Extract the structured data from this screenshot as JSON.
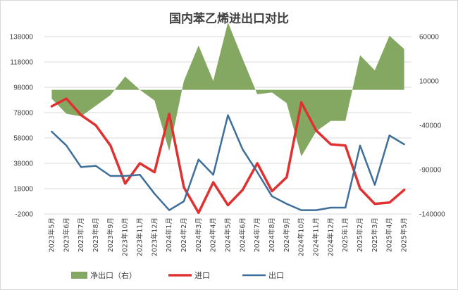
{
  "chart_data": {
    "type": "line",
    "title": "国内苯乙烯进出口对比",
    "categories": [
      "2023年5月",
      "2023年6月",
      "2023年7月",
      "2023年8月",
      "2023年9月",
      "2023年10月",
      "2023年11月",
      "2023年12月",
      "2024年1月",
      "2024年2月",
      "2024年3月",
      "2024年4月",
      "2024年5月",
      "2024年6月",
      "2024年7月",
      "2024年8月",
      "2024年9月",
      "2024年10月",
      "2024年11月",
      "2024年12月",
      "2025年1月",
      "2025年2月",
      "2025年3月",
      "2025年4月",
      "2025年5月"
    ],
    "y_left": {
      "ylim": [
        -2000,
        138000
      ],
      "ticks": [
        "-2000",
        "18000",
        "38000",
        "58000",
        "78000",
        "98000",
        "118000",
        "138000"
      ]
    },
    "y_right": {
      "ylim": [
        -140000,
        60000
      ],
      "ticks": [
        "-140000",
        "-90000",
        "-40000",
        "10000",
        "60000"
      ]
    },
    "series": [
      {
        "name": "净出口（右）",
        "type": "area",
        "axis": "right",
        "color": "#84a861",
        "values": [
          -10000,
          -27000,
          -30000,
          -18000,
          -6000,
          15000,
          0,
          -12000,
          -69000,
          10000,
          50000,
          10000,
          76000,
          35000,
          -5000,
          -3000,
          -15000,
          -75000,
          -47000,
          -35000,
          -35000,
          39000,
          22000,
          61000,
          46000
        ]
      },
      {
        "name": "进口",
        "type": "line",
        "axis": "left",
        "color": "#e03030",
        "values": [
          83000,
          89000,
          76000,
          68000,
          52000,
          22000,
          38000,
          31000,
          77000,
          19000,
          -1000,
          23000,
          5000,
          17000,
          38000,
          16000,
          27000,
          86000,
          64000,
          53000,
          52000,
          18000,
          6000,
          7000,
          17000
        ]
      },
      {
        "name": "出口",
        "type": "line",
        "axis": "left",
        "color": "#3e6e9a",
        "values": [
          63000,
          52000,
          35000,
          36000,
          28000,
          28000,
          29000,
          14000,
          1000,
          8000,
          41000,
          29000,
          76000,
          49000,
          31000,
          12000,
          6000,
          1000,
          1000,
          3000,
          3000,
          52000,
          21000,
          60000,
          53000
        ]
      }
    ]
  }
}
